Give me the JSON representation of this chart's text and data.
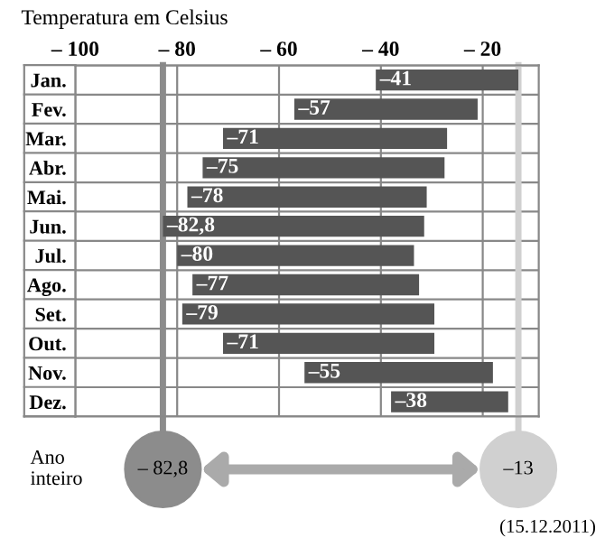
{
  "chart_data": {
    "type": "bar",
    "orientation": "horizontal",
    "title": "Temperatura em Celsius",
    "categories": [
      "Jan.",
      "Fev.",
      "Mar.",
      "Abr.",
      "Mai.",
      "Jun.",
      "Jul.",
      "Ago.",
      "Set.",
      "Out.",
      "Nov.",
      "Dez."
    ],
    "base": [
      -41,
      -57,
      -71,
      -75,
      -78,
      -82.8,
      -80,
      -77,
      -79,
      -71,
      -55,
      -38
    ],
    "values": [
      28,
      36,
      44,
      47.5,
      47,
      51.3,
      46.5,
      44.5,
      49.5,
      41.5,
      37,
      23
    ],
    "color": "#555555",
    "xlim": [
      -100,
      -9
    ],
    "xticks": [
      {
        "value": -100,
        "label": "– 100"
      },
      {
        "value": -80,
        "label": "– 80"
      },
      {
        "value": -60,
        "label": "– 60"
      },
      {
        "value": -40,
        "label": "– 40"
      },
      {
        "value": -20,
        "label": "– 20"
      }
    ],
    "grid": "x",
    "ref_lines": [
      {
        "axis": "x",
        "value": -82.8,
        "label": "– 82,8",
        "color": "#8c8c8c"
      },
      {
        "axis": "x",
        "value": -13,
        "label": "–13",
        "color": "#d0d0d0"
      }
    ],
    "annotations": [
      "Ano inteiro",
      "(15.12.2011)",
      {
        "text": "–41",
        "x": -41,
        "y": "Jan."
      },
      {
        "text": "–57",
        "x": -57,
        "y": "Fev."
      },
      {
        "text": "–71",
        "x": -71,
        "y": "Mar."
      },
      {
        "text": "–75",
        "x": -75,
        "y": "Abr."
      },
      {
        "text": "–78",
        "x": -78,
        "y": "Mai."
      },
      {
        "text": "–82,8",
        "x": -82.8,
        "y": "Jun."
      },
      {
        "text": "–80",
        "x": -80,
        "y": "Jul."
      },
      {
        "text": "–77",
        "x": -77,
        "y": "Ago."
      },
      {
        "text": "–79",
        "x": -79,
        "y": "Set."
      },
      {
        "text": "–71",
        "x": -71,
        "y": "Out."
      },
      {
        "text": "–55",
        "x": -55,
        "y": "Nov."
      },
      {
        "text": "–38",
        "x": -38,
        "y": "Dez."
      }
    ]
  }
}
